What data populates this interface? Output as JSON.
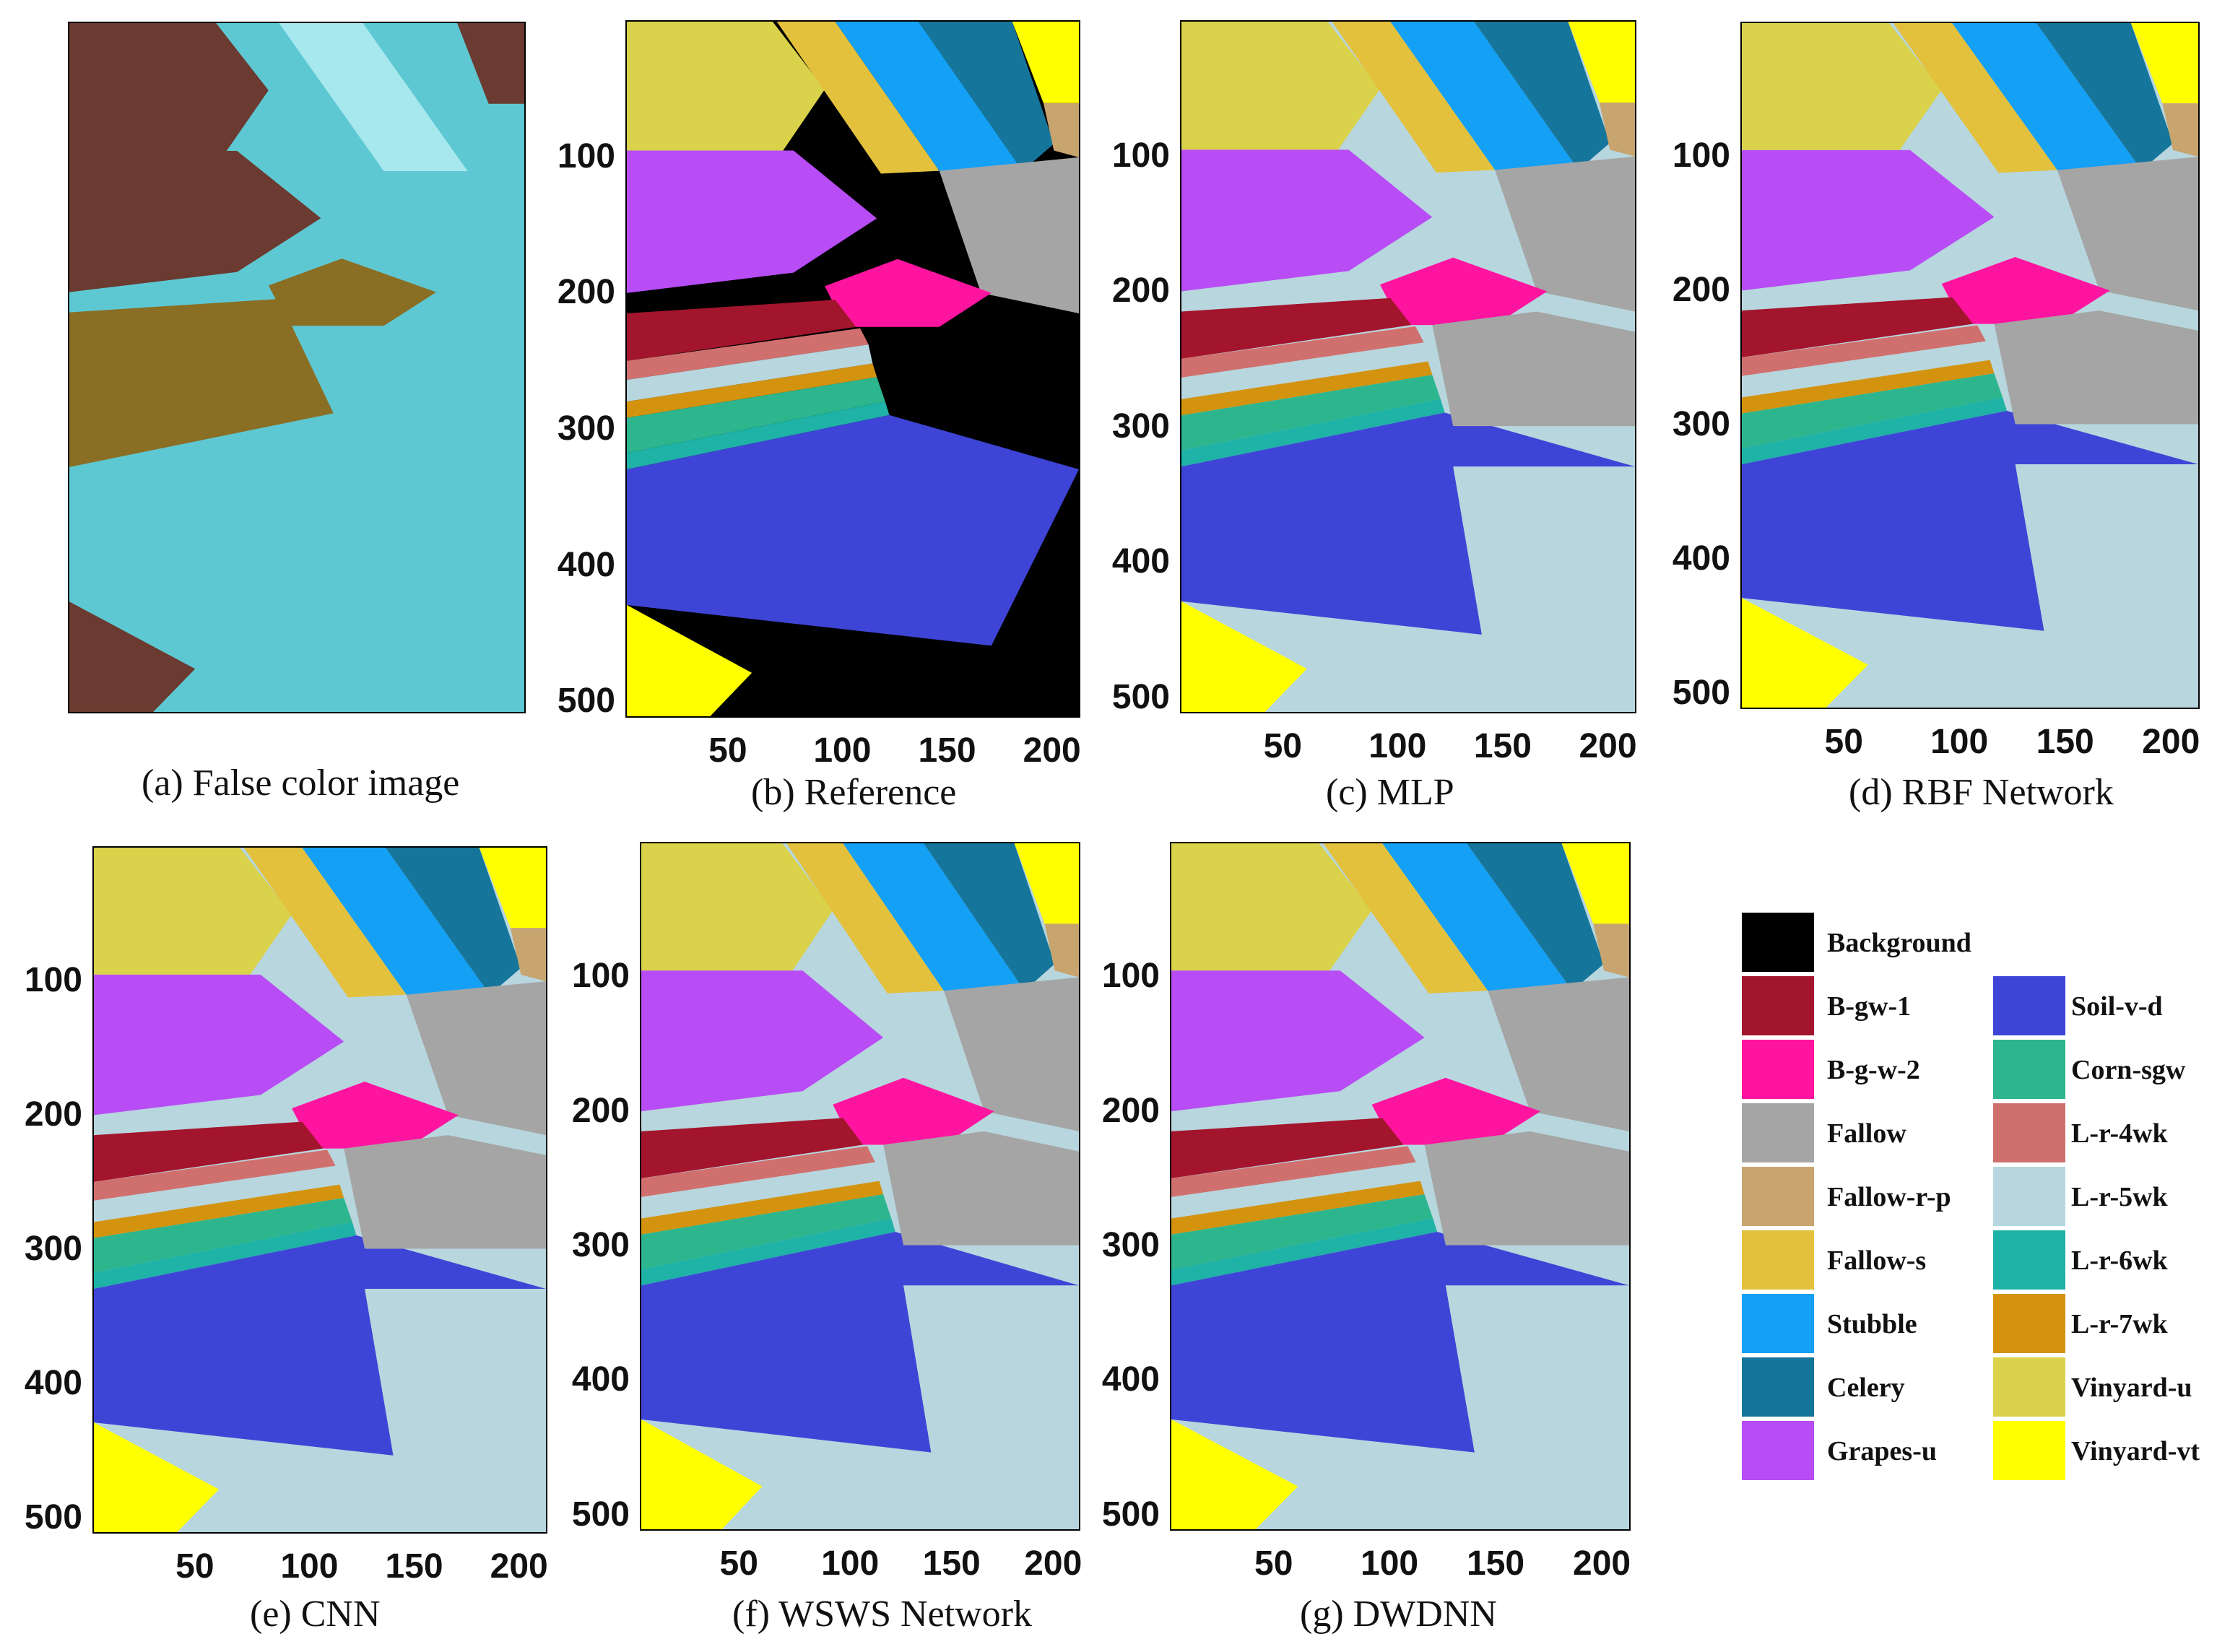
{
  "panels": [
    {
      "id": "a",
      "caption": "(a) False color image",
      "kind": "false"
    },
    {
      "id": "b",
      "caption": "(b) Reference",
      "kind": "reference"
    },
    {
      "id": "c",
      "caption": "(c) MLP",
      "kind": "map"
    },
    {
      "id": "d",
      "caption": "(d) RBF Network",
      "kind": "map"
    },
    {
      "id": "e",
      "caption": "(e) CNN",
      "kind": "map"
    },
    {
      "id": "f",
      "caption": "(f) WSWS Network",
      "kind": "map"
    },
    {
      "id": "g",
      "caption": "(g) DWDNN",
      "kind": "map"
    }
  ],
  "axes": {
    "y_ticks": [
      "100",
      "200",
      "300",
      "400",
      "500"
    ],
    "x_ticks": [
      "50",
      "100",
      "150",
      "200"
    ],
    "x_range": [
      0,
      217
    ],
    "y_range": [
      0,
      512
    ]
  },
  "legend": {
    "col1": [
      {
        "label": "Background",
        "color": "#000000"
      },
      {
        "label": "B-gw-1",
        "color": "#a3152d"
      },
      {
        "label": "B-g-w-2",
        "color": "#ff14a0"
      },
      {
        "label": "Fallow",
        "color": "#a5a5a5"
      },
      {
        "label": "Fallow-r-p",
        "color": "#c8a46e"
      },
      {
        "label": "Fallow-s",
        "color": "#e3c13c"
      },
      {
        "label": "Stubble",
        "color": "#14a0f5"
      },
      {
        "label": "Celery",
        "color": "#16759a"
      },
      {
        "label": "Grapes-u",
        "color": "#b84cf5"
      }
    ],
    "col2": [
      {
        "label": "Soil-v-d",
        "color": "#3e45d6"
      },
      {
        "label": "Corn-sgw",
        "color": "#2db58e"
      },
      {
        "label": "L-r-4wk",
        "color": "#d0706e"
      },
      {
        "label": "L-r-5wk",
        "color": "#b8d6de"
      },
      {
        "label": "L-r-6wk",
        "color": "#1fb2a6"
      },
      {
        "label": "L-r-7wk",
        "color": "#d3930f"
      },
      {
        "label": "Vinyard-u",
        "color": "#d9d24a"
      },
      {
        "label": "Vinyard-vt",
        "color": "#ffff00"
      }
    ]
  },
  "false_color": {
    "base": "#5ec8d2",
    "dark": "#6b3a30",
    "olive": "#8a6e24",
    "light": "#a6e8ee"
  }
}
